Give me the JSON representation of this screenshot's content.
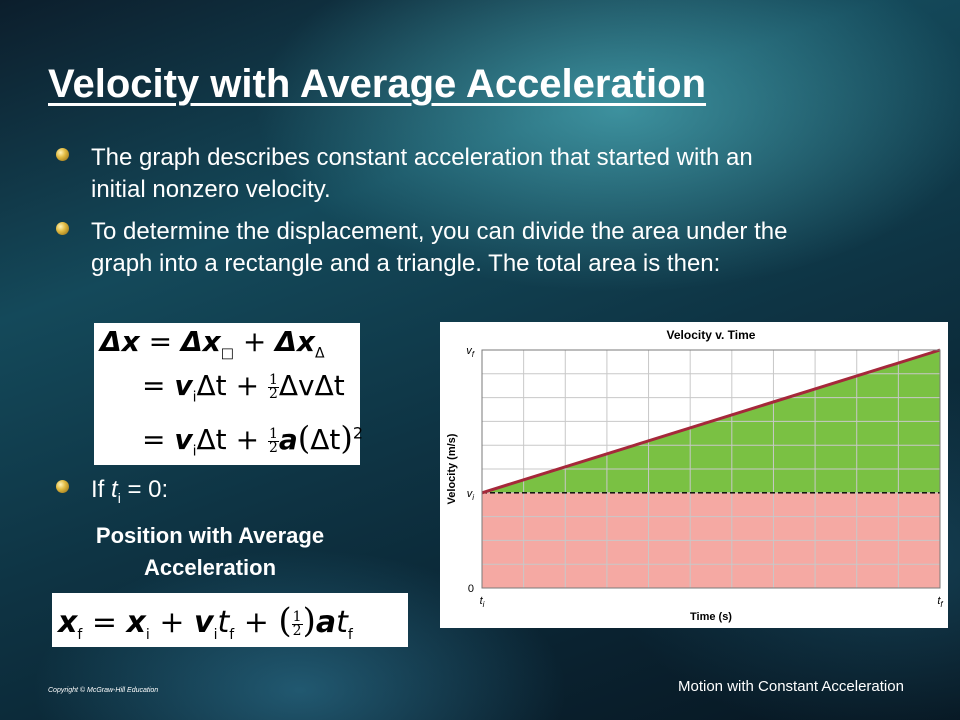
{
  "slide": {
    "title": "Velocity with Average Acceleration",
    "bullets": [
      {
        "text": "The graph describes constant acceleration that started with an initial nonzero velocity."
      },
      {
        "text": "To determine the displacement, you can divide the area under the graph into a rectangle and a triangle. The total area is then:"
      },
      {
        "prefix": "If ",
        "var": "t",
        "sub": "i",
        "suffix": " = 0:"
      }
    ],
    "formula_title": "Position with Average Acceleration",
    "copyright": "Copyright © McGraw-Hill Education",
    "footer": "Motion with Constant Acceleration"
  },
  "equations": {
    "line1": {
      "lhs": "Δx",
      "eq": "=",
      "t1": "Δx",
      "t1_sub": "□",
      "plus": "+",
      "t2": "Δx",
      "t2_sub": "Δ"
    },
    "line2": {
      "eq": "=",
      "v": "v",
      "v_sub": "i",
      "dt": "Δt",
      "plus": "+",
      "half_num": "1",
      "half_den": "2",
      "rest": "ΔvΔt"
    },
    "line3": {
      "eq": "=",
      "v": "v",
      "v_sub": "i",
      "dt": "Δt",
      "plus": "+",
      "half_num": "1",
      "half_den": "2",
      "a": "a",
      "paren_dt": "Δt",
      "exp": "2"
    },
    "position": {
      "xf": "x",
      "xf_sub": "f",
      "eq": "=",
      "xi": "x",
      "xi_sub": "i",
      "plus1": "+",
      "v": "v",
      "v_sub": "i",
      "t": "t",
      "t_sub": "f",
      "plus2": "+",
      "half_num": "1",
      "half_den": "2",
      "a": "a",
      "t2": "t",
      "t2_sub": "f"
    }
  },
  "chart_data": {
    "type": "area",
    "title": "Velocity v. Time",
    "xlabel": "Time (s)",
    "ylabel": "Velocity (m/s)",
    "x_ticks": [
      {
        "label": "t",
        "sub": "i"
      },
      {
        "label": "t",
        "sub": "f"
      }
    ],
    "y_ticks": [
      {
        "label": "0",
        "sub": ""
      },
      {
        "label": "v",
        "sub": "i"
      },
      {
        "label": "v",
        "sub": "f"
      }
    ],
    "x": [
      0,
      1
    ],
    "y": [
      0.4,
      1.0
    ],
    "vi_level": 0.4,
    "grid": true,
    "colors": {
      "line": "#a5283a",
      "triangle": "#7ac143",
      "rectangle": "#f5a9a3",
      "grid": "#c8c8c8",
      "dashed": "#000000"
    }
  }
}
